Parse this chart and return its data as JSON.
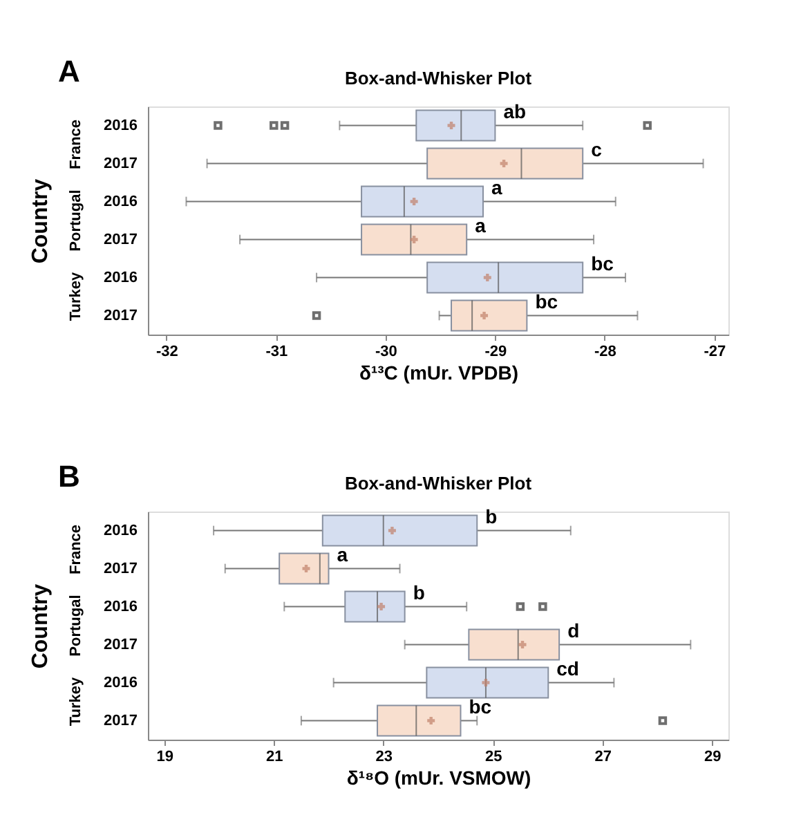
{
  "chart_data": [
    {
      "type": "box",
      "orientation": "horizontal",
      "title": "A",
      "subtitle": "Box-and-Whisker Plot",
      "xlabel": "δ¹³C (mUr. VPDB)",
      "ylabel": "Country",
      "categories": [
        "2016",
        "2017",
        "2016",
        "2017",
        "2016",
        "2017"
      ],
      "colors": [
        "#d5def0",
        "#f8dfcf",
        "#d5def0",
        "#f8dfcf",
        "#d5def0",
        "#f8dfcf"
      ],
      "boxes": [
        {
          "low": -30.42,
          "q1": -29.72,
          "median": -29.31,
          "q3": -29.0,
          "high": -28.2,
          "mean": -29.4,
          "outliers": [
            -31.53,
            -31.02,
            -30.92,
            -27.61
          ]
        },
        {
          "low": -31.63,
          "q1": -29.62,
          "median": -28.76,
          "q3": -28.2,
          "high": -27.1,
          "mean": -28.92
        },
        {
          "low": -31.82,
          "q1": -30.22,
          "median": -29.83,
          "q3": -29.11,
          "high": -27.9,
          "mean": -29.74
        },
        {
          "low": -31.33,
          "q1": -30.22,
          "median": -29.77,
          "q3": -29.26,
          "high": -28.1,
          "mean": -29.74
        },
        {
          "low": -30.63,
          "q1": -29.62,
          "median": -28.97,
          "q3": -28.2,
          "high": -27.81,
          "mean": -29.07
        },
        {
          "low": -29.51,
          "q1": -29.4,
          "median": -29.21,
          "q3": -28.71,
          "high": -27.7,
          "mean": -29.1,
          "outliers": [
            -30.63
          ]
        }
      ],
      "value_labels": [
        "ab",
        "c",
        "a",
        "a",
        "bc",
        "bc"
      ],
      "annotations": [
        "France",
        "Portugal",
        "Turkey"
      ],
      "xlim": [
        -32.17,
        -26.87
      ],
      "xticks": [
        -32,
        -31,
        -30,
        -29,
        -28,
        -27
      ]
    },
    {
      "type": "box",
      "orientation": "horizontal",
      "title": "B",
      "subtitle": "Box-and-Whisker Plot",
      "xlabel": "δ¹⁸O (mUr. VSMOW)",
      "ylabel": "Country",
      "categories": [
        "2016",
        "2017",
        "2016",
        "2017",
        "2016",
        "2017"
      ],
      "colors": [
        "#d5def0",
        "#f8dfcf",
        "#d5def0",
        "#f8dfcf",
        "#d5def0",
        "#f8dfcf"
      ],
      "boxes": [
        {
          "low": 19.9,
          "q1": 21.89,
          "median": 23.0,
          "q3": 24.71,
          "high": 26.42,
          "mean": 23.16
        },
        {
          "low": 20.11,
          "q1": 21.1,
          "median": 21.84,
          "q3": 22.0,
          "high": 23.3,
          "mean": 21.59
        },
        {
          "low": 21.19,
          "q1": 22.3,
          "median": 22.89,
          "q3": 23.39,
          "high": 24.52,
          "mean": 22.96,
          "outliers": [
            25.5,
            25.91
          ]
        },
        {
          "low": 23.39,
          "q1": 24.56,
          "median": 25.46,
          "q3": 26.21,
          "high": 28.61,
          "mean": 25.54
        },
        {
          "low": 22.09,
          "q1": 23.79,
          "median": 24.87,
          "q3": 26.01,
          "high": 27.21,
          "mean": 24.87
        },
        {
          "low": 21.5,
          "q1": 22.89,
          "median": 23.6,
          "q3": 24.41,
          "high": 24.71,
          "mean": 23.87,
          "outliers": [
            28.1
          ]
        }
      ],
      "value_labels": [
        "b",
        "a",
        "b",
        "d",
        "cd",
        "bc"
      ],
      "annotations": [
        "France",
        "Portugal",
        "Turkey"
      ],
      "xlim": [
        18.7,
        29.3
      ],
      "xticks": [
        19,
        21,
        23,
        25,
        27,
        29
      ]
    }
  ]
}
